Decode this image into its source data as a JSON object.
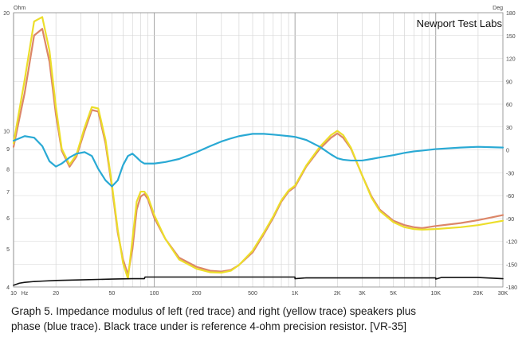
{
  "caption": {
    "line1": "Graph 5. Impedance modulus of left (red trace) and right (yellow trace) speakers plus",
    "line2": "phase (blue trace). Black trace under is reference 4-ohm precision resistor. [VR-35]"
  },
  "chart_data": {
    "type": "line",
    "title": "Newport Test Labs",
    "x_scale": "log",
    "xlim": [
      10,
      30000
    ],
    "x_ticks": [
      {
        "value": 10,
        "label": "10"
      },
      {
        "value": 12,
        "label": "Hz"
      },
      {
        "value": 20,
        "label": "20"
      },
      {
        "value": 50,
        "label": "50"
      },
      {
        "value": 100,
        "label": "100"
      },
      {
        "value": 200,
        "label": "200"
      },
      {
        "value": 500,
        "label": "500"
      },
      {
        "value": 1000,
        "label": "1K"
      },
      {
        "value": 2000,
        "label": "2K"
      },
      {
        "value": 3000,
        "label": "3K"
      },
      {
        "value": 5000,
        "label": "5K"
      },
      {
        "value": 10000,
        "label": "10K"
      },
      {
        "value": 20000,
        "label": "20K"
      },
      {
        "value": 30000,
        "label": "30K"
      }
    ],
    "y_left": {
      "unit": "Ohm",
      "scale": "log",
      "lim": [
        4,
        20
      ],
      "ticks": [
        {
          "value": 20,
          "label": "20"
        },
        {
          "value": 10,
          "label": "10"
        },
        {
          "value": 9,
          "label": "9"
        },
        {
          "value": 8,
          "label": "8"
        },
        {
          "value": 7,
          "label": "7"
        },
        {
          "value": 6,
          "label": "6"
        },
        {
          "value": 5,
          "label": "5"
        },
        {
          "value": 4,
          "label": "4"
        }
      ]
    },
    "y_right": {
      "unit": "Deg",
      "lim": [
        -180,
        180
      ],
      "ticks": [
        180,
        150,
        120,
        90,
        60,
        30,
        0,
        -30,
        -60,
        -90,
        -120,
        -150,
        -180
      ]
    },
    "grid": true,
    "series": [
      {
        "description": "left speaker impedance (red trace)",
        "axis": "left",
        "color": "#dc8668",
        "x": [
          10,
          12,
          14,
          16,
          18,
          20,
          22,
          25,
          28,
          32,
          36,
          40,
          45,
          50,
          55,
          60,
          65,
          70,
          75,
          80,
          85,
          90,
          100,
          120,
          150,
          200,
          250,
          300,
          350,
          400,
          500,
          600,
          700,
          800,
          900,
          1000,
          1200,
          1500,
          1800,
          2000,
          2200,
          2500,
          3000,
          3500,
          4000,
          5000,
          6000,
          7000,
          8000,
          10000,
          15000,
          20000,
          30000
        ],
        "y": [
          9.1,
          12.5,
          17.5,
          18.2,
          15.0,
          11.0,
          8.9,
          8.1,
          8.6,
          10.0,
          11.3,
          11.2,
          9.3,
          7.2,
          5.5,
          4.7,
          4.3,
          5.0,
          6.3,
          6.8,
          6.9,
          6.7,
          6.0,
          5.3,
          4.75,
          4.5,
          4.4,
          4.38,
          4.42,
          4.55,
          4.9,
          5.45,
          6.0,
          6.6,
          7.0,
          7.2,
          8.1,
          9.0,
          9.6,
          9.85,
          9.6,
          9.0,
          7.7,
          6.8,
          6.3,
          5.9,
          5.75,
          5.68,
          5.65,
          5.72,
          5.82,
          5.92,
          6.1
        ]
      },
      {
        "description": "right speaker impedance (yellow trace)",
        "axis": "left",
        "color": "#ecde2a",
        "x": [
          10,
          12,
          14,
          16,
          18,
          20,
          22,
          25,
          28,
          32,
          36,
          40,
          45,
          50,
          55,
          60,
          65,
          70,
          75,
          80,
          85,
          90,
          100,
          120,
          150,
          200,
          250,
          300,
          350,
          400,
          500,
          600,
          700,
          800,
          900,
          1000,
          1200,
          1500,
          1800,
          2000,
          2200,
          2500,
          3000,
          3500,
          4000,
          5000,
          6000,
          7000,
          8000,
          10000,
          15000,
          20000,
          30000
        ],
        "y": [
          9.3,
          13.5,
          19.0,
          19.5,
          16.0,
          11.5,
          9.0,
          8.2,
          8.7,
          10.2,
          11.5,
          11.4,
          9.5,
          7.3,
          5.6,
          4.6,
          4.2,
          5.3,
          6.6,
          7.0,
          7.0,
          6.8,
          6.1,
          5.3,
          4.7,
          4.45,
          4.36,
          4.35,
          4.4,
          4.55,
          4.95,
          5.5,
          6.05,
          6.65,
          7.05,
          7.25,
          8.15,
          9.1,
          9.75,
          10.0,
          9.75,
          9.05,
          7.7,
          6.75,
          6.25,
          5.85,
          5.68,
          5.62,
          5.6,
          5.62,
          5.68,
          5.75,
          5.9
        ]
      },
      {
        "description": "phase (blue trace)",
        "axis": "right",
        "color": "#29a9d4",
        "x": [
          10,
          12,
          14,
          16,
          18,
          20,
          22,
          25,
          28,
          32,
          36,
          40,
          45,
          50,
          55,
          60,
          65,
          70,
          75,
          80,
          85,
          90,
          100,
          120,
          150,
          200,
          250,
          300,
          350,
          400,
          500,
          600,
          700,
          800,
          900,
          1000,
          1200,
          1500,
          1800,
          2000,
          2200,
          2500,
          3000,
          3500,
          4000,
          5000,
          6000,
          7000,
          8000,
          10000,
          15000,
          20000,
          30000
        ],
        "y": [
          12,
          18,
          16,
          5,
          -15,
          -22,
          -18,
          -10,
          -5,
          -3,
          -8,
          -25,
          -40,
          -48,
          -40,
          -20,
          -8,
          -5,
          -10,
          -15,
          -18,
          -18,
          -18,
          -16,
          -12,
          -3,
          5,
          11,
          15,
          18,
          21,
          21,
          20,
          19,
          18,
          17,
          13,
          4,
          -6,
          -11,
          -13,
          -14,
          -14,
          -12,
          -10,
          -7,
          -4,
          -2,
          -1,
          1,
          3,
          4,
          3
        ]
      },
      {
        "description": "reference 4-ohm precision resistor (black trace)",
        "axis": "left",
        "color": "#111111",
        "x": [
          10,
          11,
          12,
          14,
          16,
          20,
          30,
          50,
          70,
          85,
          86,
          100,
          200,
          500,
          999,
          1000,
          1200,
          2000,
          5000,
          9999,
          10000,
          11000,
          20000,
          30000
        ],
        "y": [
          4.04,
          4.09,
          4.11,
          4.13,
          4.14,
          4.155,
          4.17,
          4.19,
          4.2,
          4.2,
          4.24,
          4.24,
          4.24,
          4.24,
          4.24,
          4.2,
          4.22,
          4.22,
          4.22,
          4.22,
          4.19,
          4.23,
          4.23,
          4.2
        ]
      }
    ]
  }
}
